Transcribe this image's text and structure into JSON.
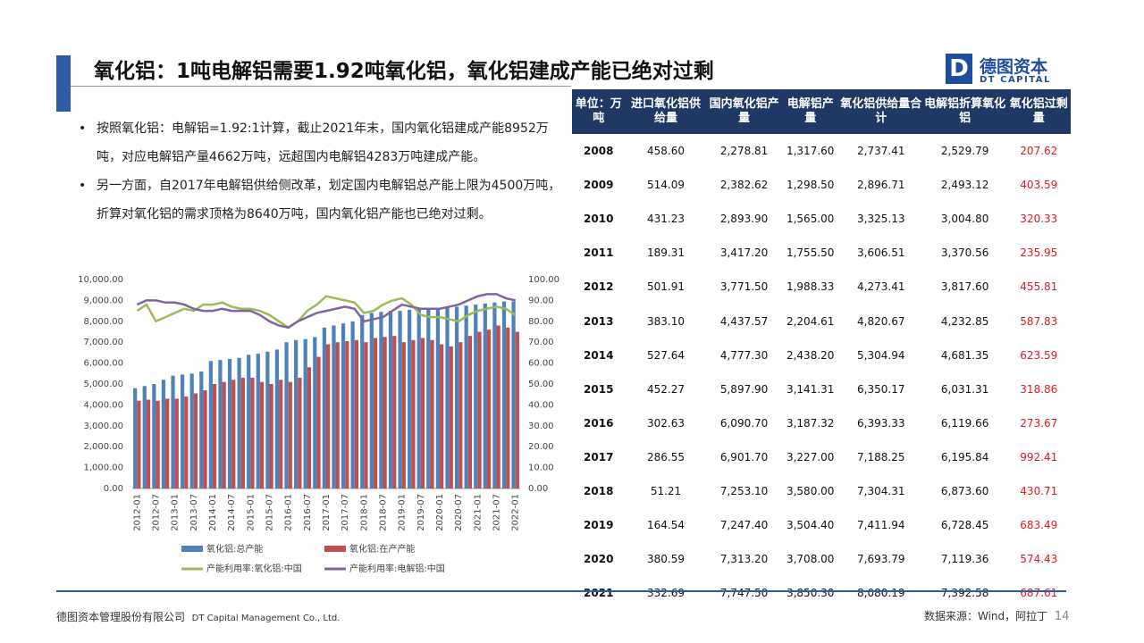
{
  "title": "氧化铝：1吨电解铝需要1.92吨氧化铝，氧化铝建成产能已绝对过剩",
  "logo": {
    "name": "德图资本",
    "sub": "DT CAPITAL"
  },
  "bullets": [
    "按照氧化铝：电解铝=1.92:1计算，截止2021年末，国内氧化铝建成产能8952万吨，对应电解铝产量4662万吨，远超国内电解铝4283万吨建成产能。",
    "另一方面，自2017年电解铝供给侧改革，划定国内电解铝总产能上限为4500万吨，折算对氧化铝的需求顶格为8640万吨，国内氧化铝产能也已绝对过剩。"
  ],
  "table": {
    "header": [
      "单位：万吨",
      "进口氧化铝供给量",
      "国内氧化铝产量",
      "电解铝产量",
      "氧化铝供给量合计",
      "电解铝折算氧化铝",
      "氧化铝过剩量"
    ],
    "rows": [
      [
        "2008",
        "458.60",
        "2,278.81",
        "1,317.60",
        "2,737.41",
        "2,529.79",
        "207.62"
      ],
      [
        "2009",
        "514.09",
        "2,382.62",
        "1,298.50",
        "2,896.71",
        "2,493.12",
        "403.59"
      ],
      [
        "2010",
        "431.23",
        "2,893.90",
        "1,565.00",
        "3,325.13",
        "3,004.80",
        "320.33"
      ],
      [
        "2011",
        "189.31",
        "3,417.20",
        "1,755.50",
        "3,606.51",
        "3,370.56",
        "235.95"
      ],
      [
        "2012",
        "501.91",
        "3,771.50",
        "1,988.33",
        "4,273.41",
        "3,817.60",
        "455.81"
      ],
      [
        "2013",
        "383.10",
        "4,437.57",
        "2,204.61",
        "4,820.67",
        "4,232.85",
        "587.83"
      ],
      [
        "2014",
        "527.64",
        "4,777.30",
        "2,438.20",
        "5,304.94",
        "4,681.35",
        "623.59"
      ],
      [
        "2015",
        "452.27",
        "5,897.90",
        "3,141.31",
        "6,350.17",
        "6,031.31",
        "318.86"
      ],
      [
        "2016",
        "302.63",
        "6,090.70",
        "3,187.32",
        "6,393.33",
        "6,119.66",
        "273.67"
      ],
      [
        "2017",
        "286.55",
        "6,901.70",
        "3,227.00",
        "7,188.25",
        "6,195.84",
        "992.41"
      ],
      [
        "2018",
        "51.21",
        "7,253.10",
        "3,580.00",
        "7,304.31",
        "6,873.60",
        "430.71"
      ],
      [
        "2019",
        "164.54",
        "7,247.40",
        "3,504.40",
        "7,411.94",
        "6,728.45",
        "683.49"
      ],
      [
        "2020",
        "380.59",
        "7,313.20",
        "3,708.00",
        "7,693.79",
        "7,119.36",
        "574.43"
      ],
      [
        "2021",
        "332.69",
        "7,747.50",
        "3,850.30",
        "8,080.19",
        "7,392.58",
        "687.61"
      ]
    ]
  },
  "footer": {
    "company": "德图资本管理股份有限公司",
    "company_en": "DT Capital Management Co., Ltd.",
    "source": "数据来源：Wind，阿拉丁",
    "page": "14"
  },
  "chart_data": {
    "type": "bar_line",
    "categories": [
      "2012-01",
      null,
      "2012-07",
      null,
      "2013-01",
      null,
      "2013-07",
      null,
      "2014-01",
      null,
      "2014-07",
      null,
      "2015-01",
      null,
      "2015-07",
      null,
      "2016-01",
      null,
      "2016-07",
      null,
      "2017-01",
      null,
      "2017-07",
      null,
      "2018-01",
      null,
      "2018-07",
      null,
      "2019-01",
      null,
      "2019-07",
      null,
      "2020-01",
      null,
      "2020-07",
      null,
      "2021-01",
      null,
      "2021-07",
      null,
      "2022-01"
    ],
    "series": [
      {
        "name": "氧化铝:总产能",
        "color": "#4f81bd",
        "kind": "bar",
        "values": [
          4800,
          4900,
          5000,
          5200,
          5400,
          5450,
          5500,
          5600,
          6100,
          6150,
          6200,
          6250,
          6400,
          6450,
          6550,
          6650,
          7000,
          7100,
          7150,
          7250,
          7700,
          7800,
          7900,
          8000,
          8300,
          8400,
          8450,
          8500,
          8500,
          8550,
          8600,
          8600,
          8600,
          8650,
          8700,
          8750,
          8800,
          8850,
          8900,
          8950,
          8950
        ]
      },
      {
        "name": "氧化铝:在产产能",
        "color": "#c0504d",
        "kind": "bar",
        "values": [
          4200,
          4250,
          4200,
          4300,
          4300,
          4400,
          4550,
          4700,
          5000,
          5100,
          5200,
          5300,
          5300,
          5100,
          5000,
          5200,
          5100,
          5300,
          5800,
          6300,
          6900,
          7000,
          7050,
          7100,
          7000,
          7200,
          7250,
          7300,
          7000,
          7100,
          7200,
          7100,
          6900,
          6800,
          7000,
          7300,
          7500,
          7600,
          7800,
          7700,
          7500
        ]
      },
      {
        "name": "产能利用率:氧化铝:中国",
        "color": "#9bbb59",
        "kind": "line",
        "axis": "y2",
        "values": [
          85,
          88,
          80,
          82,
          84,
          86,
          85,
          88,
          88,
          89,
          87,
          86,
          86,
          85,
          83,
          80,
          77,
          80,
          85,
          88,
          92,
          91,
          90,
          89,
          84,
          85,
          88,
          90,
          91,
          88,
          83,
          82,
          82,
          81,
          80,
          83,
          85,
          86,
          87,
          86,
          83
        ]
      },
      {
        "name": "产能利用率:电解铝:中国",
        "color": "#8064a2",
        "kind": "line",
        "axis": "y2",
        "values": [
          88,
          90,
          90,
          89,
          89,
          88,
          86,
          85,
          85,
          86,
          85,
          85,
          85,
          83,
          80,
          78,
          77,
          80,
          82,
          84,
          85,
          86,
          87,
          86,
          80,
          81,
          82,
          85,
          88,
          87,
          86,
          86,
          86,
          87,
          88,
          90,
          92,
          93,
          93,
          91,
          90
        ]
      }
    ],
    "ylim": [
      0,
      10000
    ],
    "yticks": [
      {
        "value": 0,
        "label": "0.00"
      },
      {
        "value": 1000,
        "label": "1,000.00"
      },
      {
        "value": 2000,
        "label": "2,000.00"
      },
      {
        "value": 3000,
        "label": "3,000.00"
      },
      {
        "value": 4000,
        "label": "4,000.00"
      },
      {
        "value": 5000,
        "label": "5,000.00"
      },
      {
        "value": 6000,
        "label": "6,000.00"
      },
      {
        "value": 7000,
        "label": "7,000.00"
      },
      {
        "value": 8000,
        "label": "8,000.00"
      },
      {
        "value": 9000,
        "label": "9,000.00"
      },
      {
        "value": 10000,
        "label": "10,000.00"
      }
    ],
    "y2lim": [
      0,
      100
    ],
    "y2ticks": [
      {
        "value": 0,
        "label": "0.00"
      },
      {
        "value": 10,
        "label": "10.00"
      },
      {
        "value": 20,
        "label": "20.00"
      },
      {
        "value": 30,
        "label": "30.00"
      },
      {
        "value": 40,
        "label": "40.00"
      },
      {
        "value": 50,
        "label": "50.00"
      },
      {
        "value": 60,
        "label": "60.00"
      },
      {
        "value": 70,
        "label": "70.00"
      },
      {
        "value": 80,
        "label": "80.00"
      },
      {
        "value": 90,
        "label": "90.00"
      },
      {
        "value": 100,
        "label": "100.00"
      }
    ]
  }
}
